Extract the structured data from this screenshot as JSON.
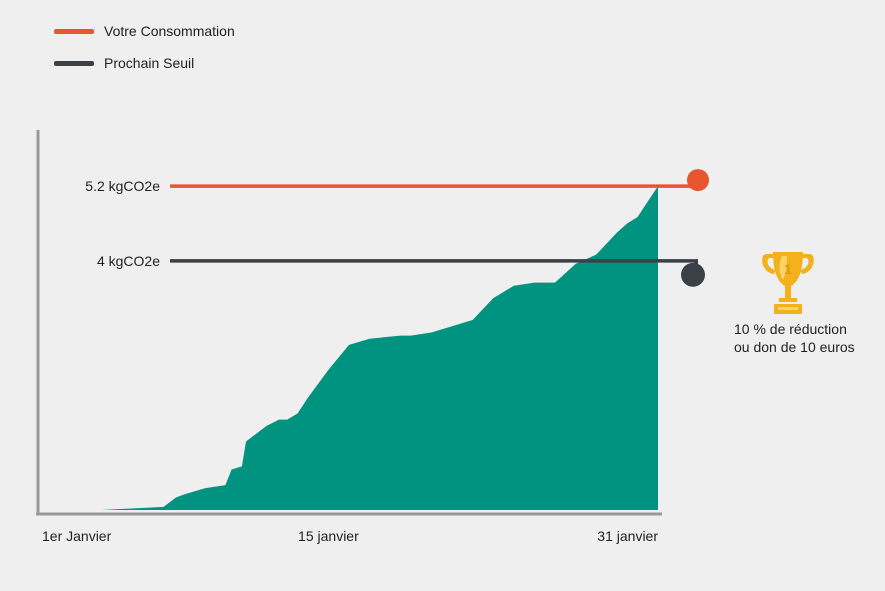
{
  "colors": {
    "background": "#efefef",
    "consumption": "#e8552f",
    "threshold": "#3a4046",
    "area": "#00937f",
    "axis": "#999999",
    "trophy": "#f3b21b"
  },
  "legend": {
    "items": [
      {
        "label": "Votre Consommation",
        "color": "#e8552f"
      },
      {
        "label": "Prochain Seuil",
        "color": "#3a4046"
      }
    ]
  },
  "reward": {
    "icon": "trophy-icon",
    "line1": "10 % de réduction",
    "line2": "ou don de 10 euros"
  },
  "chart_data": {
    "type": "area",
    "x_ticks": [
      {
        "day": 1,
        "label": "1er Janvier"
      },
      {
        "day": 15,
        "label": "15 janvier"
      },
      {
        "day": 31,
        "label": "31 janvier"
      }
    ],
    "xlim": [
      1,
      31
    ],
    "ylim": [
      0,
      6.1
    ],
    "grid": false,
    "legend_position": "top-left",
    "reference_lines": [
      {
        "name": "Votre Consommation",
        "value": 5.2,
        "label": "5.2 kgCO2e",
        "color": "#e8552f"
      },
      {
        "name": "Prochain Seuil",
        "value": 4,
        "label": "4 kgCO2e",
        "color": "#3a4046"
      }
    ],
    "series": [
      {
        "day": [
          1,
          4,
          7,
          7.6,
          8,
          9,
          10,
          10.3,
          10.8,
          11,
          12,
          12.6,
          13,
          13.5,
          14,
          15,
          16,
          17,
          18.5,
          19,
          20,
          21,
          22,
          23,
          24,
          25,
          26,
          26.5,
          27,
          28,
          29,
          29.5,
          30,
          30.6,
          31
        ],
        "values": [
          0,
          0,
          0.05,
          0.2,
          0.25,
          0.35,
          0.4,
          0.65,
          0.7,
          1.1,
          1.35,
          1.45,
          1.45,
          1.55,
          1.8,
          2.25,
          2.65,
          2.75,
          2.8,
          2.8,
          2.85,
          2.95,
          3.05,
          3.4,
          3.6,
          3.65,
          3.65,
          3.8,
          3.95,
          4.1,
          4.45,
          4.6,
          4.7,
          5.0,
          5.2
        ]
      }
    ]
  }
}
